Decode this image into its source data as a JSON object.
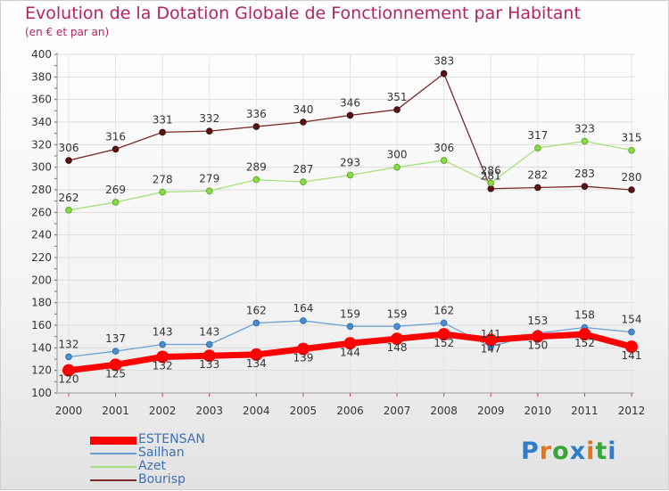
{
  "title": "Evolution de la Dotation Globale de Fonctionnement par Habitant",
  "subtitle": "(en € et par an)",
  "logo": "Proxiti",
  "chart_data": {
    "type": "line",
    "x": [
      "2000",
      "2001",
      "2002",
      "2003",
      "2004",
      "2005",
      "2006",
      "2007",
      "2008",
      "2009",
      "2010",
      "2011",
      "2012"
    ],
    "ylim": [
      100,
      400
    ],
    "yticks": [
      100,
      120,
      140,
      160,
      180,
      200,
      220,
      240,
      260,
      280,
      300,
      320,
      340,
      360,
      380,
      400
    ],
    "grid": true,
    "legend_position": "bottom-left",
    "series": [
      {
        "name": "ESTENSAN",
        "color": "#ff0000",
        "values": [
          120,
          125,
          132,
          133,
          134,
          139,
          144,
          148,
          152,
          147,
          150,
          152,
          141
        ]
      },
      {
        "name": "Sailhan",
        "color": "#4a8ecf",
        "values": [
          132,
          137,
          143,
          143,
          162,
          164,
          159,
          159,
          162,
          141,
          153,
          158,
          154
        ]
      },
      {
        "name": "Azet",
        "color": "#88dd44",
        "values": [
          262,
          269,
          278,
          279,
          289,
          287,
          293,
          300,
          306,
          286,
          317,
          323,
          315
        ]
      },
      {
        "name": "Bourisp",
        "color": "#6b1a1a",
        "values": [
          306,
          316,
          331,
          332,
          336,
          340,
          346,
          351,
          383,
          281,
          282,
          283,
          280
        ]
      }
    ]
  }
}
